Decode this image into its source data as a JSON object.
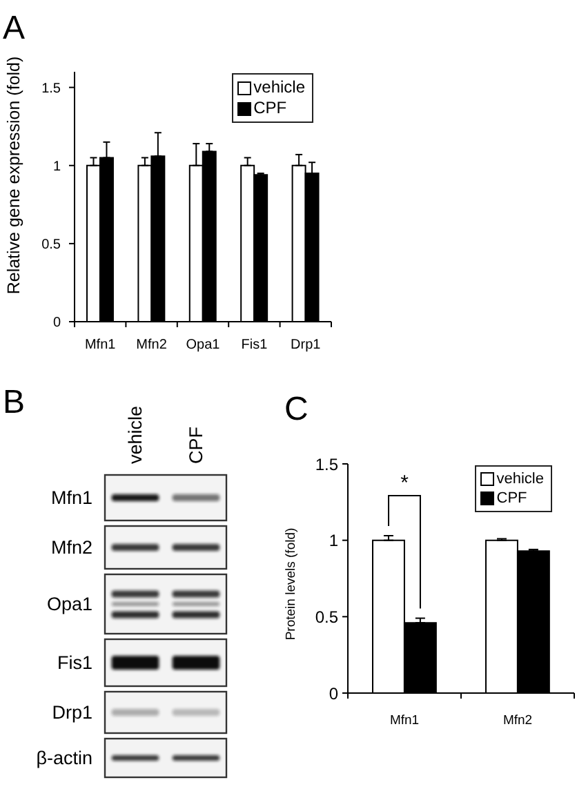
{
  "chart_data": [
    {
      "type": "bar",
      "title": "A",
      "ylabel": "Relative gene expression (fold)",
      "categories": [
        "Mfn1",
        "Mfn2",
        "Opa1",
        "Fis1",
        "Drp1"
      ],
      "series": [
        {
          "name": "vehicle",
          "color": "#ffffff",
          "values": [
            1,
            1,
            1,
            1,
            1
          ],
          "errors": [
            [
              1,
              1.05
            ],
            [
              1,
              1.05
            ],
            [
              1,
              1.14
            ],
            [
              1,
              1.05
            ],
            [
              1,
              1.07
            ]
          ]
        },
        {
          "name": "CPF",
          "color": "#000000",
          "values": [
            1.05,
            1.06,
            1.09,
            0.94,
            0.95
          ],
          "errors": [
            [
              1.05,
              1.15
            ],
            [
              1.06,
              1.21
            ],
            [
              1.09,
              1.14
            ],
            [
              0.94,
              0.95
            ],
            [
              0.95,
              1.02
            ]
          ]
        }
      ],
      "ylim": [
        0,
        1.6
      ],
      "yticks": [
        0,
        0.5,
        1,
        1.5
      ],
      "legend": "top right"
    },
    {
      "type": "other",
      "title": "B",
      "categories": [
        "vehicle",
        "CPF"
      ],
      "y_categories": [
        "Mfn1",
        "Mfn2",
        "Opa1",
        "Fis1",
        "Drp1",
        "β-actin"
      ]
    },
    {
      "type": "bar",
      "title": "C",
      "ylabel": "Protein levels (fold)",
      "categories": [
        "Mfn1",
        "Mfn2"
      ],
      "series": [
        {
          "name": "vehicle",
          "color": "#ffffff",
          "values": [
            1,
            1
          ],
          "errors": [
            [
              1,
              1.03
            ],
            [
              1,
              1.01
            ]
          ]
        },
        {
          "name": "CPF",
          "color": "#000000",
          "values": [
            0.46,
            0.93
          ],
          "errors": [
            [
              0.46,
              0.49
            ],
            [
              0.93,
              0.94
            ]
          ]
        }
      ],
      "ylim": [
        0,
        1.5
      ],
      "yticks": [
        0,
        0.5,
        1,
        1.5
      ],
      "legend": "top right",
      "annotations": [
        "*"
      ]
    }
  ]
}
